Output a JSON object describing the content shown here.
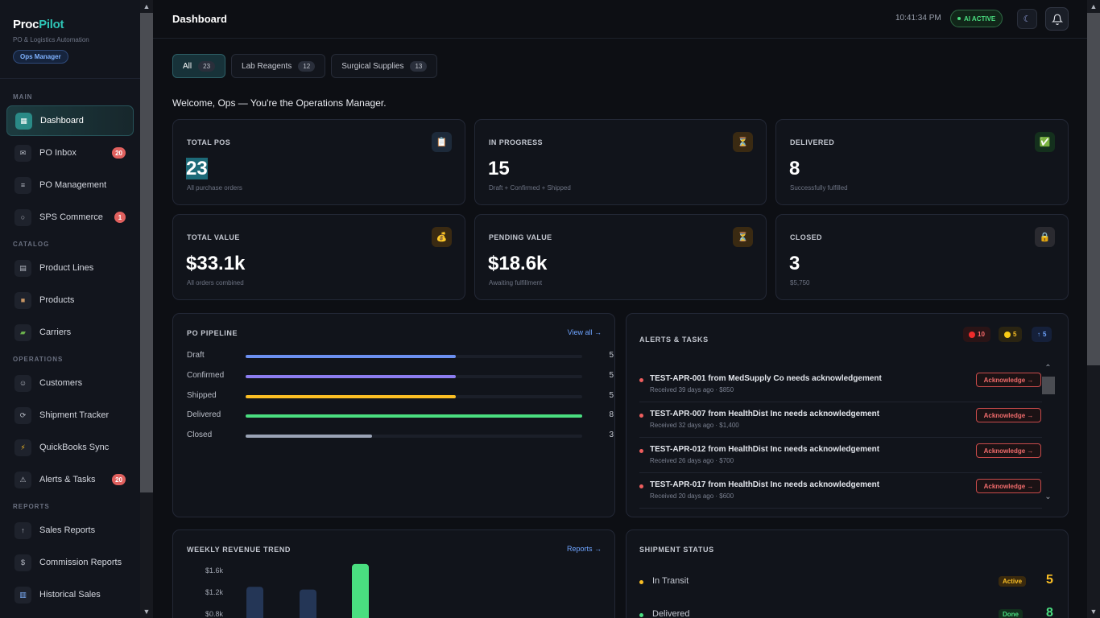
{
  "brand": {
    "name_part1": "Proc",
    "name_part2": "Pilot",
    "subtitle": "PO & Logistics Automation",
    "role": "Ops Manager"
  },
  "nav": {
    "sections": {
      "main": "MAIN",
      "catalog": "CATALOG",
      "operations": "OPERATIONS",
      "reports": "REPORTS"
    },
    "items": [
      {
        "label": "Dashboard",
        "icon": "grid-icon"
      },
      {
        "label": "PO Inbox",
        "icon": "mail-icon",
        "badge": "20"
      },
      {
        "label": "PO Management",
        "icon": "list-icon"
      },
      {
        "label": "SPS Commerce",
        "icon": "circle-icon",
        "badge": "1"
      },
      {
        "label": "Product Lines",
        "icon": "table-icon"
      },
      {
        "label": "Products",
        "icon": "box-icon"
      },
      {
        "label": "Carriers",
        "icon": "truck-icon"
      },
      {
        "label": "Customers",
        "icon": "people-icon"
      },
      {
        "label": "Shipment Tracker",
        "icon": "refresh-icon"
      },
      {
        "label": "QuickBooks Sync",
        "icon": "bolt-icon"
      },
      {
        "label": "Alerts & Tasks",
        "icon": "warning-icon",
        "badge": "20"
      },
      {
        "label": "Sales Reports",
        "icon": "arrow-up-icon"
      },
      {
        "label": "Commission Reports",
        "icon": "dollar-icon"
      },
      {
        "label": "Historical Sales",
        "icon": "bar-chart-icon"
      }
    ]
  },
  "header": {
    "title": "Dashboard",
    "time": "10:41:34 PM",
    "ai_status": "AI ACTIVE"
  },
  "filters": [
    {
      "label": "All",
      "count": "23"
    },
    {
      "label": "Lab Reagents",
      "count": "12"
    },
    {
      "label": "Surgical Supplies",
      "count": "13"
    }
  ],
  "welcome": "Welcome, Ops — You're the Operations Manager.",
  "stats": [
    {
      "label": "TOTAL POS",
      "value": "23",
      "sub": "All purchase orders",
      "icon": "clipboard-icon"
    },
    {
      "label": "IN PROGRESS",
      "value": "15",
      "sub": "Draft + Confirmed + Shipped",
      "icon": "hourglass-icon"
    },
    {
      "label": "DELIVERED",
      "value": "8",
      "sub": "Successfully fulfilled",
      "icon": "check-icon"
    },
    {
      "label": "TOTAL VALUE",
      "value": "$33.1k",
      "sub": "All orders combined",
      "icon": "money-bag-icon"
    },
    {
      "label": "PENDING VALUE",
      "value": "$18.6k",
      "sub": "Awaiting fulfillment",
      "icon": "hourglass-icon"
    },
    {
      "label": "CLOSED",
      "value": "3",
      "sub": "$5,750",
      "icon": "lock-icon"
    }
  ],
  "pipeline": {
    "title": "PO PIPELINE",
    "link": "View all →",
    "max": 8,
    "rows": [
      {
        "label": "Draft",
        "value": 5,
        "count": "5",
        "color": "#6b8ff0"
      },
      {
        "label": "Confirmed",
        "value": 5,
        "count": "5",
        "color": "#8b7cf0"
      },
      {
        "label": "Shipped",
        "value": 5,
        "count": "5",
        "color": "#fbbf24"
      },
      {
        "label": "Delivered",
        "value": 8,
        "count": "8",
        "color": "#4ade80"
      },
      {
        "label": "Closed",
        "value": 3,
        "count": "3",
        "color": "#9aa3b5"
      }
    ]
  },
  "alerts": {
    "title": "ALERTS & TASKS",
    "chips": {
      "red": "10",
      "yellow": "5",
      "blue": "5"
    },
    "items": [
      {
        "title": "TEST-APR-001 from MedSupply Co needs acknowledgement",
        "sub": "Received 39 days ago · $850",
        "action": "Acknowledge →"
      },
      {
        "title": "TEST-APR-007 from HealthDist Inc needs acknowledgement",
        "sub": "Received 32 days ago · $1,400",
        "action": "Acknowledge →"
      },
      {
        "title": "TEST-APR-012 from HealthDist Inc needs acknowledgement",
        "sub": "Received 26 days ago · $700",
        "action": "Acknowledge →"
      },
      {
        "title": "TEST-APR-017 from HealthDist Inc needs acknowledgement",
        "sub": "Received 20 days ago · $600",
        "action": "Acknowledge →"
      }
    ]
  },
  "revenue": {
    "title": "WEEKLY REVENUE TREND",
    "link": "Reports →"
  },
  "chart_data": {
    "type": "bar",
    "title": "WEEKLY REVENUE TREND",
    "yticks": [
      "$1.6k",
      "$1.2k",
      "$0.8k"
    ],
    "ytick_values": [
      1600,
      1200,
      800
    ],
    "values": [
      1300,
      1250,
      1720
    ],
    "colors": [
      "#243656",
      "#243656",
      "#4ade80"
    ]
  },
  "shipments": {
    "title": "SHIPMENT STATUS",
    "rows": [
      {
        "label": "In Transit",
        "badge": "Active",
        "count": "5",
        "color": "#fbbf24"
      },
      {
        "label": "Delivered",
        "badge": "Done",
        "count": "8",
        "color": "#4ade80"
      }
    ]
  }
}
